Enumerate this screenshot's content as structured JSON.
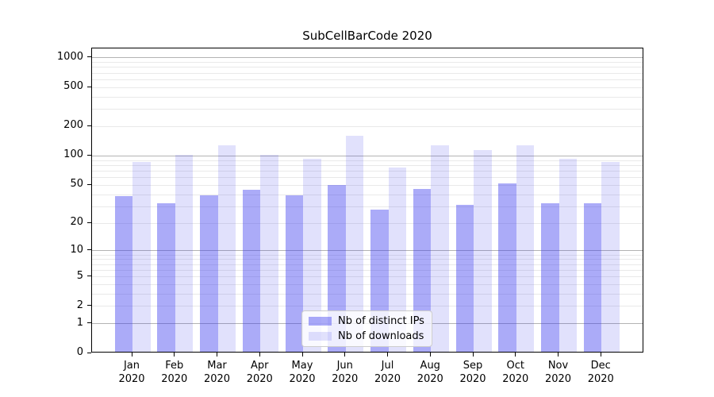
{
  "title": "SubCellBarCode 2020",
  "chart_data": {
    "type": "bar",
    "title": "SubCellBarCode 2020",
    "categories": [
      "Jan",
      "Feb",
      "Mar",
      "Apr",
      "May",
      "Jun",
      "Jul",
      "Aug",
      "Sep",
      "Oct",
      "Nov",
      "Dec"
    ],
    "year": "2020",
    "series": [
      {
        "name": "Nb of distinct IPs",
        "key": "distinct-ips",
        "color": "rgba(56,56,238,0.42)",
        "values": [
          37,
          31,
          38,
          43,
          38,
          48,
          27,
          44,
          30,
          50,
          31,
          31
        ]
      },
      {
        "name": "Nb of downloads",
        "key": "downloads",
        "color": "rgba(56,56,238,0.15)",
        "values": [
          84,
          100,
          124,
          100,
          91,
          154,
          74,
          124,
          111,
          124,
          91,
          83
        ]
      }
    ],
    "yscale": "log1p",
    "yticks": [
      0,
      1,
      2,
      5,
      10,
      20,
      50,
      100,
      200,
      500,
      1000
    ],
    "ylim": [
      0,
      1230
    ],
    "xlabel": "",
    "ylabel": "",
    "grid": "horizontal",
    "legend_position": "lower-center",
    "colors": {
      "grid_major": "#b3b3b3",
      "grid_minor": "#e9e9e9",
      "axis": "#000000",
      "background": "#ffffff"
    }
  }
}
